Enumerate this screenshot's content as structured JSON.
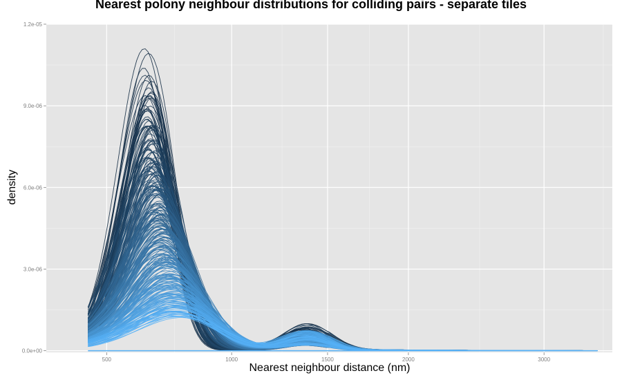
{
  "chart_data": {
    "type": "line",
    "title": "Nearest polony neighbour distributions for colliding pairs - separate tiles",
    "xlabel": "Nearest neighbour distance (nm)",
    "ylabel": "density",
    "xlim": [
      320,
      3580
    ],
    "ylim": [
      -6e-08,
      1.2e-05
    ],
    "x_ticks": [
      500,
      1000,
      1500,
      2000,
      3000
    ],
    "x_tick_labels": [
      "500",
      "1000",
      "1500",
      "2000",
      "3000"
    ],
    "y_ticks": [
      0,
      3e-06,
      6e-06,
      9e-06,
      1.2e-05
    ],
    "y_tick_labels": [
      "0.0e+00",
      "3.0e-06",
      "6.0e-06",
      "9.0e-06",
      "1.2e-05"
    ],
    "x_scale": "sqrt",
    "grid": true,
    "background": "#e5e5e5",
    "color_low": "#132b43",
    "color_high": "#56b1f7",
    "curve_x_range": [
      440,
      3450
    ],
    "series_count": 300,
    "series_description": "density curves, one per tile; peak near 650-750 nm with secondary hump near 1380 nm",
    "peak_density_range": [
      1.3e-06,
      1.15e-05
    ],
    "secondary_peak_x": 1380,
    "secondary_peak_density_max": 1e-06
  }
}
